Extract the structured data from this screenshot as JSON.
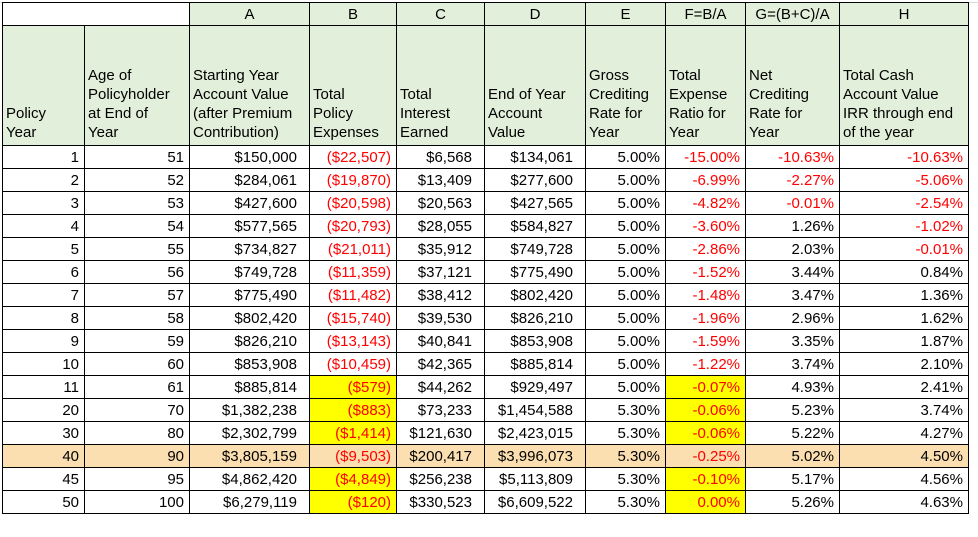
{
  "sheet": {
    "colors": {
      "header_bg": "#E2EFDA",
      "highlight_row_bg": "#FBDFB1",
      "highlight_cell_bg": "#FFFF00",
      "negative_text": "#FF0000",
      "gridline": "#D9D9D9",
      "border": "#000000"
    },
    "letter_row": [
      "",
      "A",
      "B",
      "C",
      "D",
      "E",
      "F=B/A",
      "G=(B+C)/A",
      "H"
    ],
    "column_headers": [
      "Policy\nYear",
      "Age of\nPolicyholder\nat End of\nYear",
      "Starting Year\nAccount Value\n(after Premium\nContribution)",
      "Total\nPolicy\nExpenses",
      "Total\nInterest\nEarned",
      "End of Year\nAccount\nValue",
      "Gross\nCrediting\nRate for\nYear",
      "Total\nExpense\nRatio for\nYear",
      "Net\nCrediting\nRate for\nYear",
      "Total Cash\nAccount Value\nIRR through end\nof the year"
    ],
    "rows": [
      {
        "cells": [
          "1",
          "51",
          "$150,000",
          "($22,507)",
          "$6,568",
          "$134,061",
          "5.00%",
          "-15.00%",
          "-10.63%",
          "-10.63%"
        ],
        "red": [
          3,
          7,
          8,
          9
        ],
        "yellow": [],
        "highlight": false
      },
      {
        "cells": [
          "2",
          "52",
          "$284,061",
          "($19,870)",
          "$13,409",
          "$277,600",
          "5.00%",
          "-6.99%",
          "-2.27%",
          "-5.06%"
        ],
        "red": [
          3,
          7,
          8,
          9
        ],
        "yellow": [],
        "highlight": false
      },
      {
        "cells": [
          "3",
          "53",
          "$427,600",
          "($20,598)",
          "$20,563",
          "$427,565",
          "5.00%",
          "-4.82%",
          "-0.01%",
          "-2.54%"
        ],
        "red": [
          3,
          7,
          8,
          9
        ],
        "yellow": [],
        "highlight": false
      },
      {
        "cells": [
          "4",
          "54",
          "$577,565",
          "($20,793)",
          "$28,055",
          "$584,827",
          "5.00%",
          "-3.60%",
          "1.26%",
          "-1.02%"
        ],
        "red": [
          3,
          7,
          9
        ],
        "yellow": [],
        "highlight": false
      },
      {
        "cells": [
          "5",
          "55",
          "$734,827",
          "($21,011)",
          "$35,912",
          "$749,728",
          "5.00%",
          "-2.86%",
          "2.03%",
          "-0.01%"
        ],
        "red": [
          3,
          7,
          9
        ],
        "yellow": [],
        "highlight": false
      },
      {
        "cells": [
          "6",
          "56",
          "$749,728",
          "($11,359)",
          "$37,121",
          "$775,490",
          "5.00%",
          "-1.52%",
          "3.44%",
          "0.84%"
        ],
        "red": [
          3,
          7
        ],
        "yellow": [],
        "highlight": false
      },
      {
        "cells": [
          "7",
          "57",
          "$775,490",
          "($11,482)",
          "$38,412",
          "$802,420",
          "5.00%",
          "-1.48%",
          "3.47%",
          "1.36%"
        ],
        "red": [
          3,
          7
        ],
        "yellow": [],
        "highlight": false
      },
      {
        "cells": [
          "8",
          "58",
          "$802,420",
          "($15,740)",
          "$39,530",
          "$826,210",
          "5.00%",
          "-1.96%",
          "2.96%",
          "1.62%"
        ],
        "red": [
          3,
          7
        ],
        "yellow": [],
        "highlight": false
      },
      {
        "cells": [
          "9",
          "59",
          "$826,210",
          "($13,143)",
          "$40,841",
          "$853,908",
          "5.00%",
          "-1.59%",
          "3.35%",
          "1.87%"
        ],
        "red": [
          3,
          7
        ],
        "yellow": [],
        "highlight": false
      },
      {
        "cells": [
          "10",
          "60",
          "$853,908",
          "($10,459)",
          "$42,365",
          "$885,814",
          "5.00%",
          "-1.22%",
          "3.74%",
          "2.10%"
        ],
        "red": [
          3,
          7
        ],
        "yellow": [],
        "highlight": false
      },
      {
        "cells": [
          "11",
          "61",
          "$885,814",
          "($579)",
          "$44,262",
          "$929,497",
          "5.00%",
          "-0.07%",
          "4.93%",
          "2.41%"
        ],
        "red": [
          3,
          7
        ],
        "yellow": [
          3,
          7
        ],
        "highlight": false
      },
      {
        "cells": [
          "20",
          "70",
          "$1,382,238",
          "($883)",
          "$73,233",
          "$1,454,588",
          "5.30%",
          "-0.06%",
          "5.23%",
          "3.74%"
        ],
        "red": [
          3,
          7
        ],
        "yellow": [
          3,
          7
        ],
        "highlight": false
      },
      {
        "cells": [
          "30",
          "80",
          "$2,302,799",
          "($1,414)",
          "$121,630",
          "$2,423,015",
          "5.30%",
          "-0.06%",
          "5.22%",
          "4.27%"
        ],
        "red": [
          3,
          7
        ],
        "yellow": [
          3,
          7
        ],
        "highlight": false
      },
      {
        "cells": [
          "40",
          "90",
          "$3,805,159",
          "($9,503)",
          "$200,417",
          "$3,996,073",
          "5.30%",
          "-0.25%",
          "5.02%",
          "4.50%"
        ],
        "red": [
          3,
          7
        ],
        "yellow": [
          3,
          7
        ],
        "highlight": true
      },
      {
        "cells": [
          "45",
          "95",
          "$4,862,420",
          "($4,849)",
          "$256,238",
          "$5,113,809",
          "5.30%",
          "-0.10%",
          "5.17%",
          "4.56%"
        ],
        "red": [
          3,
          7
        ],
        "yellow": [
          3,
          7
        ],
        "highlight": false
      },
      {
        "cells": [
          "50",
          "100",
          "$6,279,119",
          "($120)",
          "$330,523",
          "$6,609,522",
          "5.30%",
          "0.00%",
          "5.26%",
          "4.63%"
        ],
        "red": [
          3,
          7
        ],
        "yellow": [
          3,
          7
        ],
        "highlight": false
      }
    ]
  }
}
